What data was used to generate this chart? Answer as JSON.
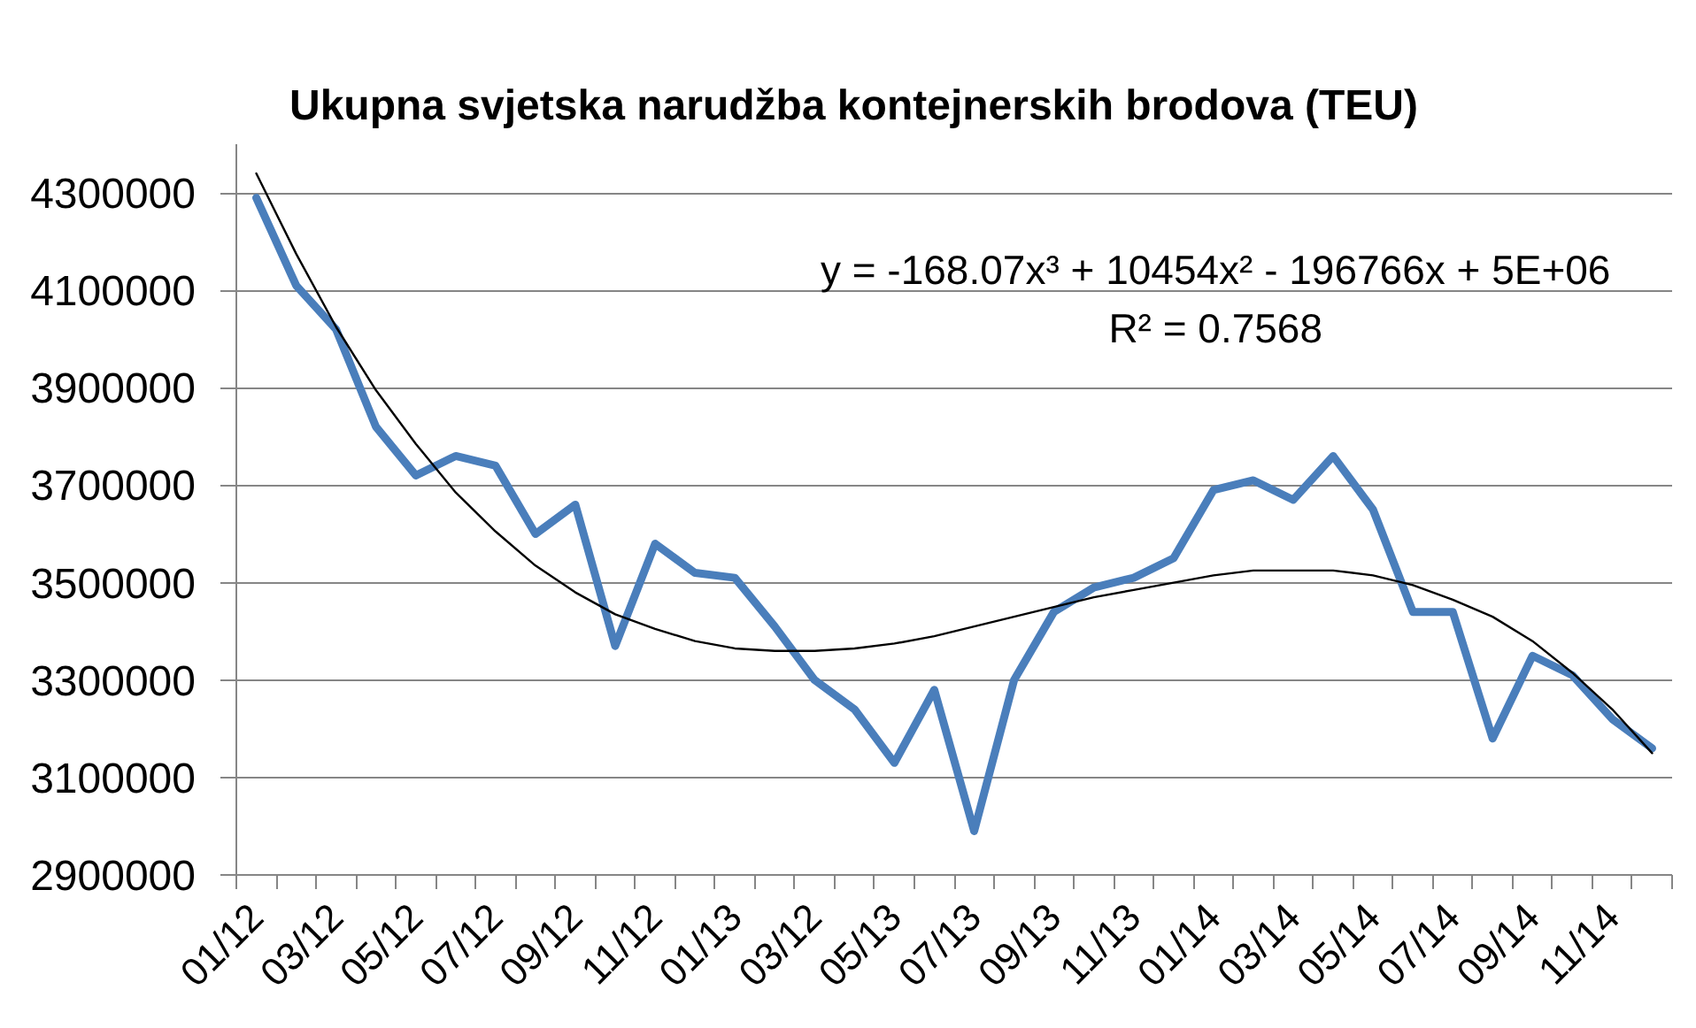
{
  "chart_data": {
    "type": "line",
    "title": "Ukupna svjetska narudžba kontejnerskih brodova (TEU)",
    "categories": [
      "01/12",
      null,
      "03/12",
      null,
      "05/12",
      null,
      "07/12",
      null,
      "09/12",
      null,
      "11/12",
      null,
      "01/13",
      null,
      "03/12",
      null,
      "05/13",
      null,
      "07/13",
      null,
      "09/13",
      null,
      "11/13",
      null,
      "01/14",
      null,
      "03/14",
      null,
      "05/14",
      null,
      "07/14",
      null,
      "09/14",
      null,
      "11/14",
      null
    ],
    "series": [
      {
        "color": "#4a7ebb",
        "values": [
          4290000,
          4110000,
          4020000,
          3820000,
          3720000,
          3760000,
          3740000,
          3600000,
          3660000,
          3370000,
          3580000,
          3520000,
          3510000,
          3410000,
          3300000,
          3240000,
          3130000,
          3280000,
          2990000,
          3300000,
          3440000,
          3490000,
          3510000,
          3550000,
          3690000,
          3710000,
          3670000,
          3760000,
          3650000,
          3440000,
          3440000,
          3180000,
          3350000,
          3310000,
          3220000,
          3160000
        ]
      },
      {
        "color": "#000000",
        "values": [
          4340000,
          4175000,
          4025000,
          3895000,
          3785000,
          3685000,
          3605000,
          3535000,
          3480000,
          3435000,
          3405000,
          3380000,
          3365000,
          3360000,
          3360000,
          3365000,
          3375000,
          3390000,
          3410000,
          3430000,
          3450000,
          3470000,
          3485000,
          3500000,
          3515000,
          3525000,
          3525000,
          3525000,
          3515000,
          3495000,
          3465000,
          3430000,
          3380000,
          3315000,
          3240000,
          3150000
        ]
      }
    ],
    "ylim": [
      2900000,
      4400000
    ],
    "yticks": [
      2900000,
      3100000,
      3300000,
      3500000,
      3700000,
      3900000,
      4100000,
      4300000
    ],
    "grid": "y",
    "marker": "none",
    "line_style": "solid",
    "annotations": [
      "y = -168.07x³ + 10454x² - 196766x + 5E+06",
      "R² = 0.7568"
    ]
  }
}
